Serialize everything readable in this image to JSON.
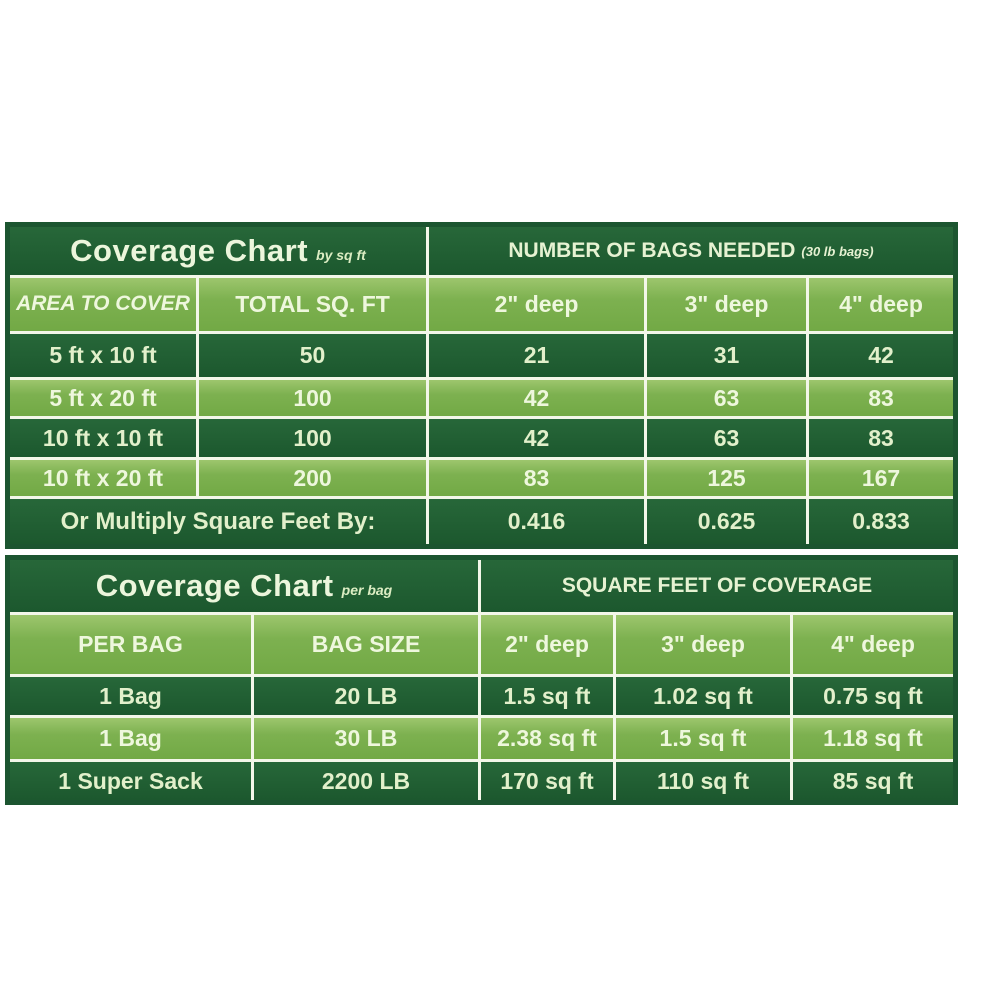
{
  "colors": {
    "dark_green": "#1d5a2f",
    "light_green": "#74ab48",
    "gridline": "#f3f7e9",
    "text_pale": "#e6f2d2",
    "page_background": "#ffffff"
  },
  "chart_data": [
    {
      "type": "table",
      "title": "Coverage Chart",
      "subtitle": "by sq ft",
      "group_header": "NUMBER OF BAGS NEEDED",
      "group_header_note": "(30 lb bags)",
      "columns": [
        "AREA TO COVER",
        "TOTAL SQ. FT",
        "2\" deep",
        "3\" deep",
        "4\" deep"
      ],
      "rows": [
        [
          "5 ft x 10 ft",
          "50",
          "21",
          "31",
          "42"
        ],
        [
          "5 ft x 20 ft",
          "100",
          "42",
          "63",
          "83"
        ],
        [
          "10 ft x 10 ft",
          "100",
          "42",
          "63",
          "83"
        ],
        [
          "10 ft x 20 ft",
          "200",
          "83",
          "125",
          "167"
        ]
      ],
      "footer_label": "Or Multiply Square Feet By:",
      "footer_values": [
        "0.416",
        "0.625",
        "0.833"
      ]
    },
    {
      "type": "table",
      "title": "Coverage Chart",
      "subtitle": "per bag",
      "group_header": "SQUARE FEET OF COVERAGE",
      "columns": [
        "PER BAG",
        "BAG SIZE",
        "2\" deep",
        "3\" deep",
        "4\" deep"
      ],
      "rows": [
        [
          "1 Bag",
          "20 LB",
          "1.5 sq ft",
          "1.02 sq ft",
          "0.75 sq ft"
        ],
        [
          "1 Bag",
          "30 LB",
          "2.38 sq ft",
          "1.5 sq ft",
          "1.18 sq ft"
        ],
        [
          "1 Super Sack",
          "2200 LB",
          "170 sq ft",
          "110 sq ft",
          "85 sq ft"
        ]
      ]
    }
  ]
}
